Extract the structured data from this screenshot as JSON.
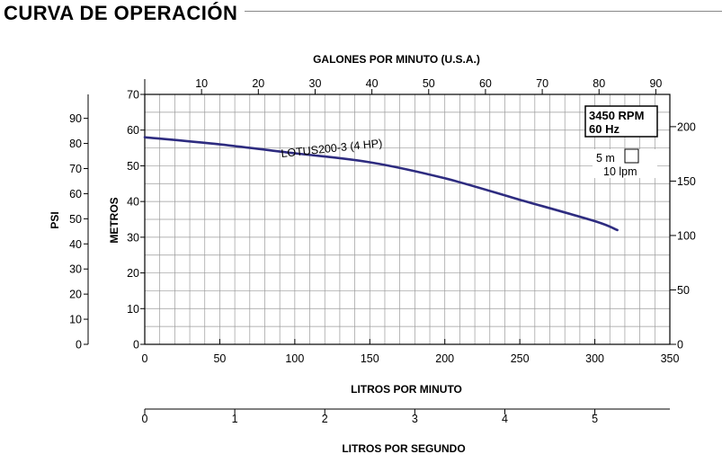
{
  "page": {
    "title": "CURVA DE OPERACIÓN"
  },
  "chart_data": {
    "type": "line",
    "series": [
      {
        "name": "LOTUS200-3 (4 HP)",
        "x": [
          0,
          50,
          100,
          150,
          200,
          250,
          300,
          315
        ],
        "y": [
          58,
          56,
          53.5,
          51,
          46.5,
          40.5,
          34.5,
          32
        ]
      }
    ],
    "x_axis": {
      "label": "LITROS POR MINUTO",
      "range": [
        0,
        350
      ],
      "ticks": [
        "0",
        "50",
        "100",
        "150",
        "200",
        "250",
        "300",
        "350"
      ]
    },
    "y_axis": {
      "label": "METROS",
      "range": [
        0,
        70
      ],
      "ticks": [
        "0",
        "10",
        "20",
        "30",
        "40",
        "50",
        "60",
        "70"
      ]
    },
    "top_axis": {
      "label": "GALONES POR MINUTO (U.S.A.)",
      "ticks": [
        "10",
        "20",
        "30",
        "40",
        "50",
        "60",
        "70",
        "80",
        "90"
      ]
    },
    "left_axis": {
      "label": "PSI",
      "ticks": [
        "0",
        "10",
        "20",
        "30",
        "40",
        "50",
        "60",
        "70",
        "80",
        "90"
      ]
    },
    "right_axis": {
      "ticks": [
        "0",
        "50",
        "100",
        "150",
        "200"
      ]
    },
    "bottom_axis": {
      "label": "LITROS POR SEGUNDO",
      "ticks": [
        "0",
        "1",
        "2",
        "3",
        "4",
        "5"
      ]
    },
    "speed_box": {
      "rpm": "3450 RPM",
      "hz": "60 Hz"
    },
    "grid_legend": {
      "vertical": "5 m",
      "horizontal": "10 lpm"
    },
    "grid": true,
    "colors": {
      "curve": "#2e2c80",
      "grid": "#9a9a9a",
      "axis": "#000000"
    }
  }
}
